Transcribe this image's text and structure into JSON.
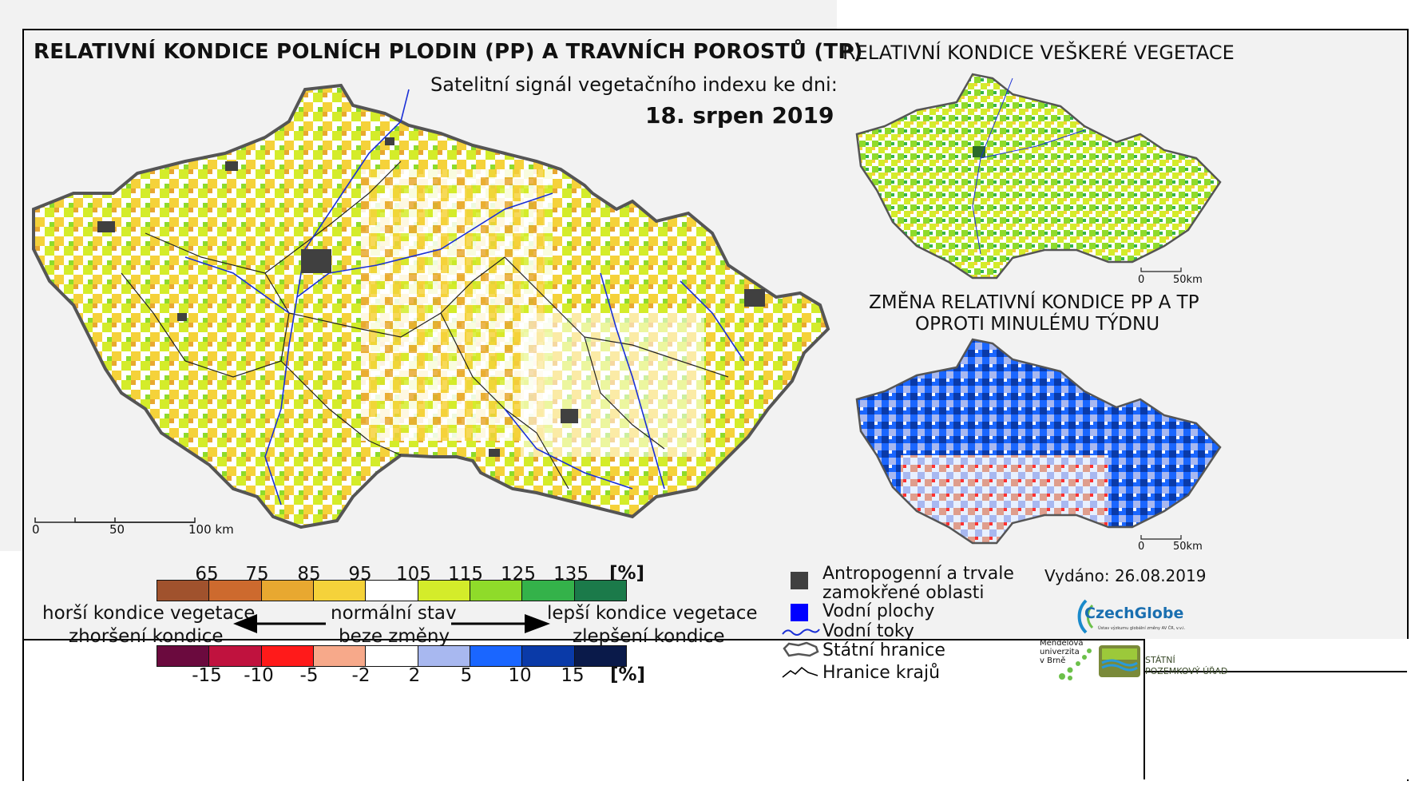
{
  "main_map": {
    "title": "RELATIVNÍ KONDICE POLNÍCH PLODIN (PP) A TRAVNÍCH POROSTŮ (TP)",
    "subtitle": "Satelitní signál vegetačního indexu ke dni:",
    "date": "18. srpen 2019",
    "scale_labels": [
      "0",
      "50",
      "100 km"
    ]
  },
  "inset_vegetation": {
    "title": "RELATIVNÍ KONDICE VEŠKERÉ VEGETACE",
    "scale_labels": [
      "0",
      "50km"
    ]
  },
  "inset_change": {
    "title_line1": "ZMĚNA RELATIVNÍ KONDICE PP A TP",
    "title_line2": "OPROTI MINULÉMU TÝDNU",
    "scale_labels": [
      "0",
      "50km"
    ]
  },
  "legend_condition": {
    "ticks": [
      "65",
      "75",
      "85",
      "95",
      "105",
      "115",
      "125",
      "135"
    ],
    "unit": "[%]",
    "colors": [
      "#a0522d",
      "#cd6a2e",
      "#e8a830",
      "#f5d23a",
      "#ffffff",
      "#d4ec2a",
      "#8fdb2a",
      "#34b24a",
      "#1b7a4a"
    ]
  },
  "legend_change": {
    "ticks": [
      "-15",
      "-10",
      "-5",
      "-2",
      "2",
      "5",
      "10",
      "15"
    ],
    "unit": "[%]",
    "colors": [
      "#6b0a3e",
      "#c0123e",
      "#ff1a1a",
      "#f7a98a",
      "#ffffff",
      "#a8b8f0",
      "#1a66ff",
      "#0a3aa8",
      "#0a1a4a"
    ]
  },
  "arrow_labels": {
    "worse_line1": "horší kondice vegetace",
    "worse_line2": "zhoršení kondice",
    "normal_line1": "normální stav",
    "normal_line2": "beze změny",
    "better_line1": "lepší kondice vegetace",
    "better_line2": "zlepšení kondice"
  },
  "symbol_legend": {
    "anthropogenic_line1": "Antropogenní a trvale",
    "anthropogenic_line2": "zamokřené oblasti",
    "water_areas": "Vodní plochy",
    "rivers": "Vodní toky",
    "state_border": "Státní hranice",
    "region_border": "Hranice krajů"
  },
  "issued": "Vydáno: 26.08.2019",
  "logos": {
    "czechglobe": "CzechGlobe",
    "czechglobe_sub": "Ústav výzkumu globální změny AV ČR, v.v.i.",
    "mendel_line1": "Mendelova",
    "mendel_line2": "univerzita",
    "mendel_line3": "v Brně",
    "spu_line1": "STÁTNÍ",
    "spu_line2": "POZEMKOVÝ ÚŘAD"
  },
  "colors": {
    "anthropogenic": "#404040",
    "water": "#0000ff",
    "river": "#1a2fd6"
  }
}
